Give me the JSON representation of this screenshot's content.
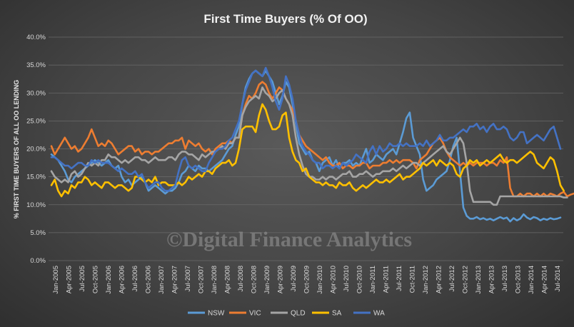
{
  "watermark": "©Digital Finance Analytics",
  "colors": {
    "background": "#454545",
    "grid": "#6a6a6a",
    "NSW": "#5b9bd5",
    "VIC": "#ed7d31",
    "QLD": "#a5a5a5",
    "SA": "#ffc000",
    "WA": "#4472c4"
  },
  "chart_data": {
    "type": "line",
    "title": "First Time Buyers (% Of OO)",
    "xlabel": "",
    "ylabel": "% FIRST TIME BUYERS OF ALL OO LENDING",
    "ylim": [
      0,
      40
    ],
    "y_ticks": [
      "0.0%",
      "5.0%",
      "10.0%",
      "15.0%",
      "20.0%",
      "25.0%",
      "30.0%",
      "35.0%",
      "40.0%"
    ],
    "x_tick_labels": [
      "Jan-2005",
      "Apr-2005",
      "Jul-2005",
      "Oct-2005",
      "Jan-2006",
      "Apr-2006",
      "Jul-2006",
      "Oct-2006",
      "Jan-2007",
      "Apr-2007",
      "Jul-2007",
      "Oct-2007",
      "Jan-2008",
      "Apr-2008",
      "Jul-2008",
      "Oct-2008",
      "Jan-2009",
      "Apr-2009",
      "Jul-2009",
      "Oct-2009",
      "Jan-2010",
      "Apr-2010",
      "Jul-2010",
      "Oct-2010",
      "Jan-2011",
      "Apr-2011",
      "Jul-2011",
      "Oct-2011",
      "Jan-2012",
      "Apr-2012",
      "Jul-2012",
      "Oct-2012",
      "Jan-2013",
      "Apr-2013",
      "Jul-2013",
      "Oct-2013",
      "Jan-2014",
      "Apr-2014",
      "Jul-2014"
    ],
    "grid": true,
    "legend_position": "bottom",
    "series": [
      {
        "name": "NSW",
        "values": [
          19.0,
          18.5,
          18.0,
          17.0,
          16.0,
          14.5,
          14.0,
          15.0,
          15.5,
          16.0,
          16.5,
          17.0,
          17.5,
          18.0,
          17.5,
          17.0,
          17.5,
          18.0,
          17.0,
          16.5,
          17.0,
          15.0,
          14.0,
          14.5,
          13.5,
          14.0,
          14.5,
          15.0,
          14.0,
          12.5,
          13.0,
          13.5,
          13.0,
          12.5,
          12.0,
          12.5,
          12.5,
          13.0,
          14.0,
          15.5,
          16.0,
          17.0,
          16.5,
          16.0,
          17.0,
          16.5,
          16.5,
          16.0,
          16.5,
          17.0,
          17.5,
          18.0,
          19.0,
          20.0,
          20.5,
          22.5,
          24.0,
          28.0,
          31.0,
          32.5,
          33.5,
          34.0,
          33.5,
          33.0,
          34.0,
          33.0,
          32.0,
          30.0,
          28.0,
          29.5,
          32.0,
          31.0,
          28.0,
          24.5,
          21.0,
          20.0,
          19.0,
          19.5,
          18.0,
          17.5,
          16.0,
          17.5,
          18.0,
          18.5,
          17.0,
          18.0,
          16.5,
          17.5,
          17.5,
          18.0,
          17.0,
          17.5,
          17.0,
          18.5,
          20.0,
          17.5,
          18.0,
          19.0,
          18.5,
          18.0,
          19.0,
          19.5,
          20.0,
          19.0,
          21.0,
          23.0,
          25.5,
          26.5,
          22.0,
          20.5,
          19.0,
          14.5,
          12.5,
          13.0,
          13.5,
          14.5,
          15.0,
          15.5,
          16.0,
          18.0,
          20.5,
          22.0,
          16.0,
          9.5,
          8.0,
          7.5,
          7.5,
          7.8,
          7.4,
          7.6,
          7.3,
          7.5,
          7.2,
          7.5,
          7.8,
          7.5,
          7.7,
          7.0,
          7.6,
          7.2,
          7.5,
          8.3,
          7.7,
          7.4,
          7.8,
          7.6,
          7.2,
          7.5,
          7.3,
          7.6,
          7.4,
          7.5,
          7.7
        ]
      },
      {
        "name": "VIC",
        "values": [
          20.5,
          19.0,
          20.0,
          21.0,
          22.0,
          21.0,
          20.0,
          20.5,
          19.5,
          20.0,
          21.0,
          22.0,
          23.5,
          22.0,
          20.5,
          21.0,
          20.5,
          21.5,
          21.0,
          20.0,
          19.0,
          19.5,
          20.0,
          20.5,
          20.5,
          19.5,
          20.0,
          19.0,
          19.5,
          19.5,
          19.0,
          19.5,
          19.5,
          20.0,
          20.5,
          21.0,
          21.0,
          21.5,
          21.5,
          22.0,
          20.0,
          21.5,
          21.0,
          20.5,
          21.0,
          20.0,
          19.5,
          20.0,
          19.0,
          20.0,
          20.5,
          21.0,
          21.0,
          21.5,
          21.0,
          22.0,
          22.0,
          26.0,
          28.0,
          29.5,
          29.0,
          30.0,
          31.5,
          32.0,
          31.5,
          30.0,
          29.0,
          30.0,
          31.0,
          30.5,
          29.0,
          28.0,
          27.0,
          25.0,
          22.5,
          21.5,
          20.5,
          20.0,
          19.5,
          19.0,
          18.5,
          18.0,
          18.5,
          17.5,
          17.0,
          17.0,
          17.5,
          16.5,
          17.0,
          17.0,
          16.5,
          17.0,
          17.0,
          17.5,
          17.5,
          16.5,
          17.0,
          17.0,
          17.0,
          17.5,
          17.5,
          18.0,
          17.5,
          18.0,
          17.5,
          18.0,
          18.0,
          18.0,
          17.5,
          16.5,
          18.0,
          18.5,
          19.0,
          20.0,
          21.0,
          21.5,
          22.0,
          21.0,
          19.5,
          18.5,
          18.0,
          17.5,
          17.0,
          17.5,
          17.0,
          17.5,
          17.0,
          17.5,
          17.5,
          17.5,
          17.0,
          17.5,
          17.5,
          17.0,
          18.0,
          17.5,
          18.5,
          13.0,
          11.5,
          11.5,
          12.0,
          11.5,
          12.0,
          12.0,
          11.5,
          12.0,
          11.5,
          12.0,
          11.5,
          12.0,
          11.8,
          11.5,
          12.0,
          12.3,
          11.5,
          11.8,
          12.0
        ]
      },
      {
        "name": "QLD",
        "values": [
          16.0,
          15.0,
          14.5,
          14.0,
          14.5,
          14.0,
          15.5,
          16.0,
          15.0,
          15.5,
          16.5,
          17.5,
          17.0,
          17.5,
          17.0,
          18.0,
          18.0,
          19.0,
          18.5,
          18.5,
          18.0,
          17.5,
          18.0,
          17.5,
          18.0,
          18.5,
          18.5,
          18.0,
          18.0,
          17.5,
          18.0,
          18.5,
          18.0,
          18.0,
          18.0,
          18.5,
          18.5,
          18.0,
          19.0,
          19.5,
          19.5,
          19.0,
          19.0,
          18.5,
          18.0,
          19.0,
          18.5,
          19.0,
          19.5,
          19.5,
          20.0,
          20.5,
          20.0,
          21.0,
          21.0,
          22.0,
          22.0,
          26.0,
          27.5,
          28.5,
          29.0,
          29.5,
          29.0,
          31.0,
          30.0,
          29.5,
          28.5,
          29.0,
          30.0,
          30.5,
          29.0,
          28.0,
          26.0,
          22.0,
          19.0,
          17.0,
          15.5,
          15.0,
          15.0,
          14.5,
          14.5,
          15.0,
          14.5,
          15.0,
          15.0,
          14.5,
          15.0,
          15.5,
          15.5,
          16.0,
          15.0,
          15.0,
          15.5,
          15.5,
          16.0,
          15.5,
          15.0,
          15.5,
          15.5,
          16.0,
          16.0,
          16.0,
          16.5,
          16.0,
          16.5,
          17.0,
          16.5,
          17.0,
          17.5,
          17.5,
          17.0,
          17.5,
          18.0,
          18.5,
          19.0,
          19.5,
          20.0,
          20.5,
          19.5,
          19.0,
          20.0,
          21.0,
          22.0,
          21.0,
          17.5,
          12.5,
          10.5,
          10.5,
          10.5,
          10.5,
          10.5,
          10.5,
          10.0,
          10.0,
          11.5,
          11.5,
          11.5,
          11.5,
          11.5,
          11.5,
          11.5,
          11.5,
          11.5,
          11.5,
          11.5,
          11.5,
          11.5,
          11.5,
          11.5,
          11.5,
          11.5,
          11.5,
          11.5,
          11.3,
          11.3
        ]
      },
      {
        "name": "SA",
        "values": [
          13.5,
          14.5,
          12.5,
          11.5,
          12.5,
          12.0,
          13.5,
          13.0,
          14.0,
          14.0,
          15.0,
          14.5,
          13.5,
          14.0,
          13.5,
          13.0,
          14.0,
          14.0,
          13.5,
          13.0,
          13.5,
          13.5,
          13.0,
          12.5,
          13.0,
          15.0,
          15.0,
          14.5,
          14.0,
          14.5,
          14.0,
          15.0,
          13.5,
          14.0,
          14.0,
          13.5,
          13.5,
          13.5,
          14.0,
          13.5,
          14.0,
          15.0,
          14.5,
          15.0,
          15.5,
          15.0,
          16.0,
          16.0,
          15.5,
          16.5,
          17.0,
          17.5,
          17.5,
          18.0,
          17.0,
          17.5,
          20.0,
          23.5,
          24.0,
          24.0,
          24.0,
          23.0,
          26.0,
          28.0,
          27.0,
          25.0,
          23.5,
          23.5,
          24.0,
          26.0,
          26.5,
          22.0,
          19.5,
          18.0,
          17.5,
          16.0,
          16.5,
          15.0,
          14.5,
          14.0,
          14.0,
          13.5,
          14.0,
          13.5,
          13.5,
          13.0,
          14.0,
          13.5,
          13.5,
          14.0,
          13.0,
          12.5,
          13.0,
          13.5,
          13.0,
          13.5,
          14.0,
          14.5,
          14.0,
          14.0,
          14.5,
          14.0,
          14.5,
          15.0,
          15.5,
          14.5,
          15.0,
          15.0,
          15.5,
          16.0,
          16.5,
          17.5,
          17.0,
          17.5,
          18.0,
          17.0,
          18.0,
          17.5,
          17.0,
          17.5,
          17.0,
          15.5,
          15.0,
          16.5,
          17.0,
          18.0,
          17.5,
          18.0,
          17.0,
          17.5,
          18.0,
          17.5,
          18.0,
          18.5,
          19.0,
          18.0,
          17.5,
          18.0,
          18.0,
          17.5,
          18.0,
          18.5,
          19.0,
          19.5,
          19.0,
          17.5,
          17.0,
          16.5,
          17.5,
          18.5,
          18.0,
          16.0,
          13.5,
          12.5
        ]
      },
      {
        "name": "WA",
        "values": [
          18.5,
          18.5,
          18.0,
          17.5,
          17.0,
          17.0,
          16.5,
          17.0,
          17.5,
          17.5,
          17.0,
          17.0,
          18.0,
          17.5,
          18.0,
          17.5,
          17.5,
          17.5,
          17.0,
          16.5,
          16.0,
          16.5,
          16.0,
          15.5,
          15.5,
          16.0,
          15.0,
          15.5,
          14.0,
          13.0,
          13.5,
          14.0,
          14.0,
          13.0,
          12.5,
          12.5,
          13.0,
          13.5,
          16.0,
          18.0,
          18.5,
          17.0,
          16.5,
          17.0,
          16.5,
          16.0,
          16.0,
          17.5,
          18.5,
          19.5,
          20.0,
          20.0,
          20.5,
          21.5,
          22.0,
          23.5,
          25.0,
          28.0,
          30.5,
          32.0,
          33.5,
          34.0,
          33.5,
          33.0,
          34.5,
          33.0,
          31.0,
          28.5,
          27.0,
          29.0,
          33.0,
          31.5,
          29.0,
          25.0,
          22.5,
          20.5,
          19.5,
          19.0,
          18.0,
          17.5,
          17.5,
          16.5,
          17.0,
          17.0,
          16.5,
          17.0,
          16.5,
          17.5,
          17.0,
          17.5,
          18.0,
          19.0,
          18.5,
          18.0,
          17.5,
          19.5,
          20.5,
          19.0,
          20.5,
          19.5,
          20.0,
          21.0,
          20.5,
          20.5,
          21.0,
          20.5,
          21.0,
          20.5,
          20.5,
          20.5,
          21.0,
          20.5,
          21.5,
          20.5,
          21.0,
          21.5,
          22.5,
          21.5,
          21.5,
          22.0,
          22.0,
          22.5,
          23.0,
          23.5,
          23.0,
          24.0,
          24.0,
          24.5,
          23.5,
          24.0,
          23.0,
          24.0,
          24.5,
          23.5,
          23.5,
          24.0,
          23.5,
          22.0,
          21.5,
          22.0,
          23.0,
          23.0,
          21.0,
          21.5,
          22.0,
          22.5,
          22.0,
          21.5,
          22.5,
          23.5,
          24.0,
          22.0,
          20.0
        ]
      }
    ]
  }
}
